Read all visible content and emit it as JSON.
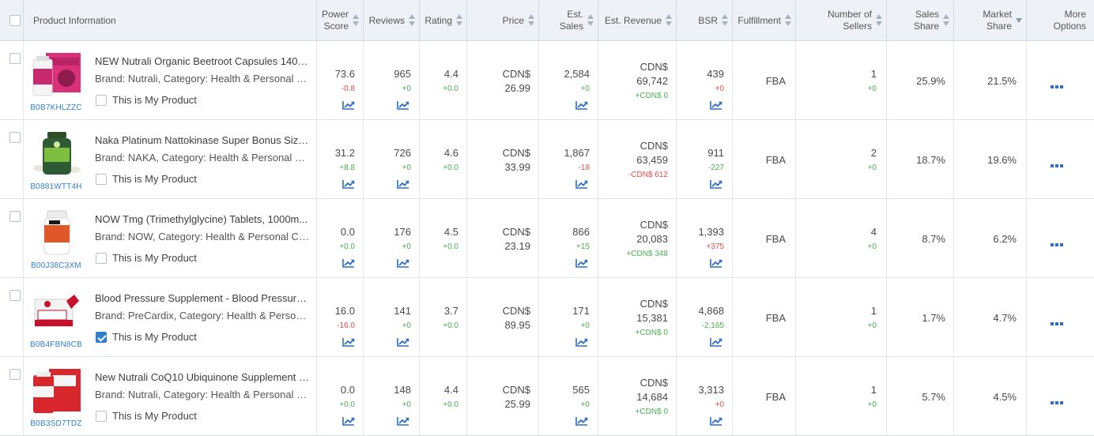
{
  "header": {
    "product_info": "Product Information",
    "power_score": [
      "Power",
      "Score"
    ],
    "reviews": "Reviews",
    "rating": "Rating",
    "price": "Price",
    "est_sales": [
      "Est.",
      "Sales"
    ],
    "est_revenue": "Est. Revenue",
    "bsr": "BSR",
    "fulfillment": "Fulfillment",
    "num_sellers": [
      "Number of",
      "Sellers"
    ],
    "sales_share": [
      "Sales",
      "Share"
    ],
    "market_share": [
      "Market",
      "Share"
    ],
    "more_options": [
      "More",
      "Options"
    ]
  },
  "colors": {
    "accent": "#2f7fd1",
    "positive": "#4caf50",
    "negative": "#e54b4b"
  },
  "my_product_label": "This is My Product",
  "rows": [
    {
      "asin": "B0B7KHLZZC",
      "title": "NEW Nutrali Organic Beetroot Capsules 1400...",
      "meta": "Brand: Nutrali,  Category: Health & Personal C...",
      "is_mine": false,
      "image": "beetroot",
      "power_score": "73.6",
      "power_delta": "-0.8",
      "power_dir": "neg",
      "reviews": "965",
      "reviews_delta": "+0",
      "reviews_dir": "pos",
      "rating": "4.4",
      "rating_delta": "+0.0",
      "rating_dir": "pos",
      "price_cur": "CDN$",
      "price": "26.99",
      "sales": "2,584",
      "sales_delta": "+0",
      "sales_dir": "pos",
      "rev_cur": "CDN$",
      "revenue": "69,742",
      "rev_delta": "+CDN$ 0",
      "rev_dir": "pos",
      "bsr": "439",
      "bsr_delta": "+0",
      "bsr_dir": "neg",
      "fulfillment": "FBA",
      "sellers": "1",
      "sellers_delta": "+0",
      "sales_share": "25.9%",
      "market_share": "21.5%"
    },
    {
      "asin": "B0881WTT4H",
      "title": "Naka Platinum Nattokinase Super Bonus Size ...",
      "meta": "Brand: NAKA,  Category: Health & Personal C...",
      "is_mine": false,
      "image": "nattokinase",
      "power_score": "31.2",
      "power_delta": "+8.8",
      "power_dir": "pos",
      "reviews": "726",
      "reviews_delta": "+0",
      "reviews_dir": "pos",
      "rating": "4.6",
      "rating_delta": "+0.0",
      "rating_dir": "pos",
      "price_cur": "CDN$",
      "price": "33.99",
      "sales": "1,867",
      "sales_delta": "-18",
      "sales_dir": "neg",
      "rev_cur": "CDN$",
      "revenue": "63,459",
      "rev_delta": "-CDN$ 612",
      "rev_dir": "neg",
      "bsr": "911",
      "bsr_delta": "-227",
      "bsr_dir": "pos",
      "fulfillment": "FBA",
      "sellers": "2",
      "sellers_delta": "+0",
      "sales_share": "18.7%",
      "market_share": "19.6%"
    },
    {
      "asin": "B00J38C3XM",
      "title": "NOW Tmg (Trimethylglycine) Tablets, 1000m...",
      "meta": "Brand: NOW,  Category: Health & Personal Ca...",
      "is_mine": false,
      "image": "tmg",
      "power_score": "0.0",
      "power_delta": "+0.0",
      "power_dir": "pos",
      "reviews": "176",
      "reviews_delta": "+0",
      "reviews_dir": "pos",
      "rating": "4.5",
      "rating_delta": "+0.0",
      "rating_dir": "pos",
      "price_cur": "CDN$",
      "price": "23.19",
      "sales": "866",
      "sales_delta": "+15",
      "sales_dir": "pos",
      "rev_cur": "CDN$",
      "revenue": "20,083",
      "rev_delta": "+CDN$ 348",
      "rev_dir": "pos",
      "bsr": "1,393",
      "bsr_delta": "+375",
      "bsr_dir": "neg",
      "fulfillment": "FBA",
      "sellers": "4",
      "sellers_delta": "+0",
      "sales_share": "8.7%",
      "market_share": "6.2%"
    },
    {
      "asin": "B0B4FBN8CB",
      "title": "Blood Pressure Supplement - Blood Pressure ...",
      "meta": "Brand: PreCardix,  Category: Health & Person...",
      "is_mine": true,
      "image": "precardix",
      "power_score": "16.0",
      "power_delta": "-16.0",
      "power_dir": "neg",
      "reviews": "141",
      "reviews_delta": "+0",
      "reviews_dir": "pos",
      "rating": "3.7",
      "rating_delta": "+0.0",
      "rating_dir": "pos",
      "price_cur": "CDN$",
      "price": "89.95",
      "sales": "171",
      "sales_delta": "+0",
      "sales_dir": "pos",
      "rev_cur": "CDN$",
      "revenue": "15,381",
      "rev_delta": "+CDN$ 0",
      "rev_dir": "pos",
      "bsr": "4,868",
      "bsr_delta": "-2,165",
      "bsr_dir": "pos",
      "fulfillment": "FBA",
      "sellers": "1",
      "sellers_delta": "+0",
      "sales_share": "1.7%",
      "market_share": "4.7%"
    },
    {
      "asin": "B0B3SD7TDZ",
      "title": "New Nutrali CoQ10 Ubiquinone Supplement –...",
      "meta": "Brand: Nutrali,  Category: Health & Personal C...",
      "is_mine": false,
      "image": "coq10",
      "power_score": "0.0",
      "power_delta": "+0.0",
      "power_dir": "pos",
      "reviews": "148",
      "reviews_delta": "+0",
      "reviews_dir": "pos",
      "rating": "4.4",
      "rating_delta": "+0.0",
      "rating_dir": "pos",
      "price_cur": "CDN$",
      "price": "25.99",
      "sales": "565",
      "sales_delta": "+0",
      "sales_dir": "pos",
      "rev_cur": "CDN$",
      "revenue": "14,684",
      "rev_delta": "+CDN$ 0",
      "rev_dir": "pos",
      "bsr": "3,313",
      "bsr_delta": "+0",
      "bsr_dir": "neg",
      "fulfillment": "FBA",
      "sellers": "1",
      "sellers_delta": "+0",
      "sales_share": "5.7%",
      "market_share": "4.5%"
    }
  ]
}
